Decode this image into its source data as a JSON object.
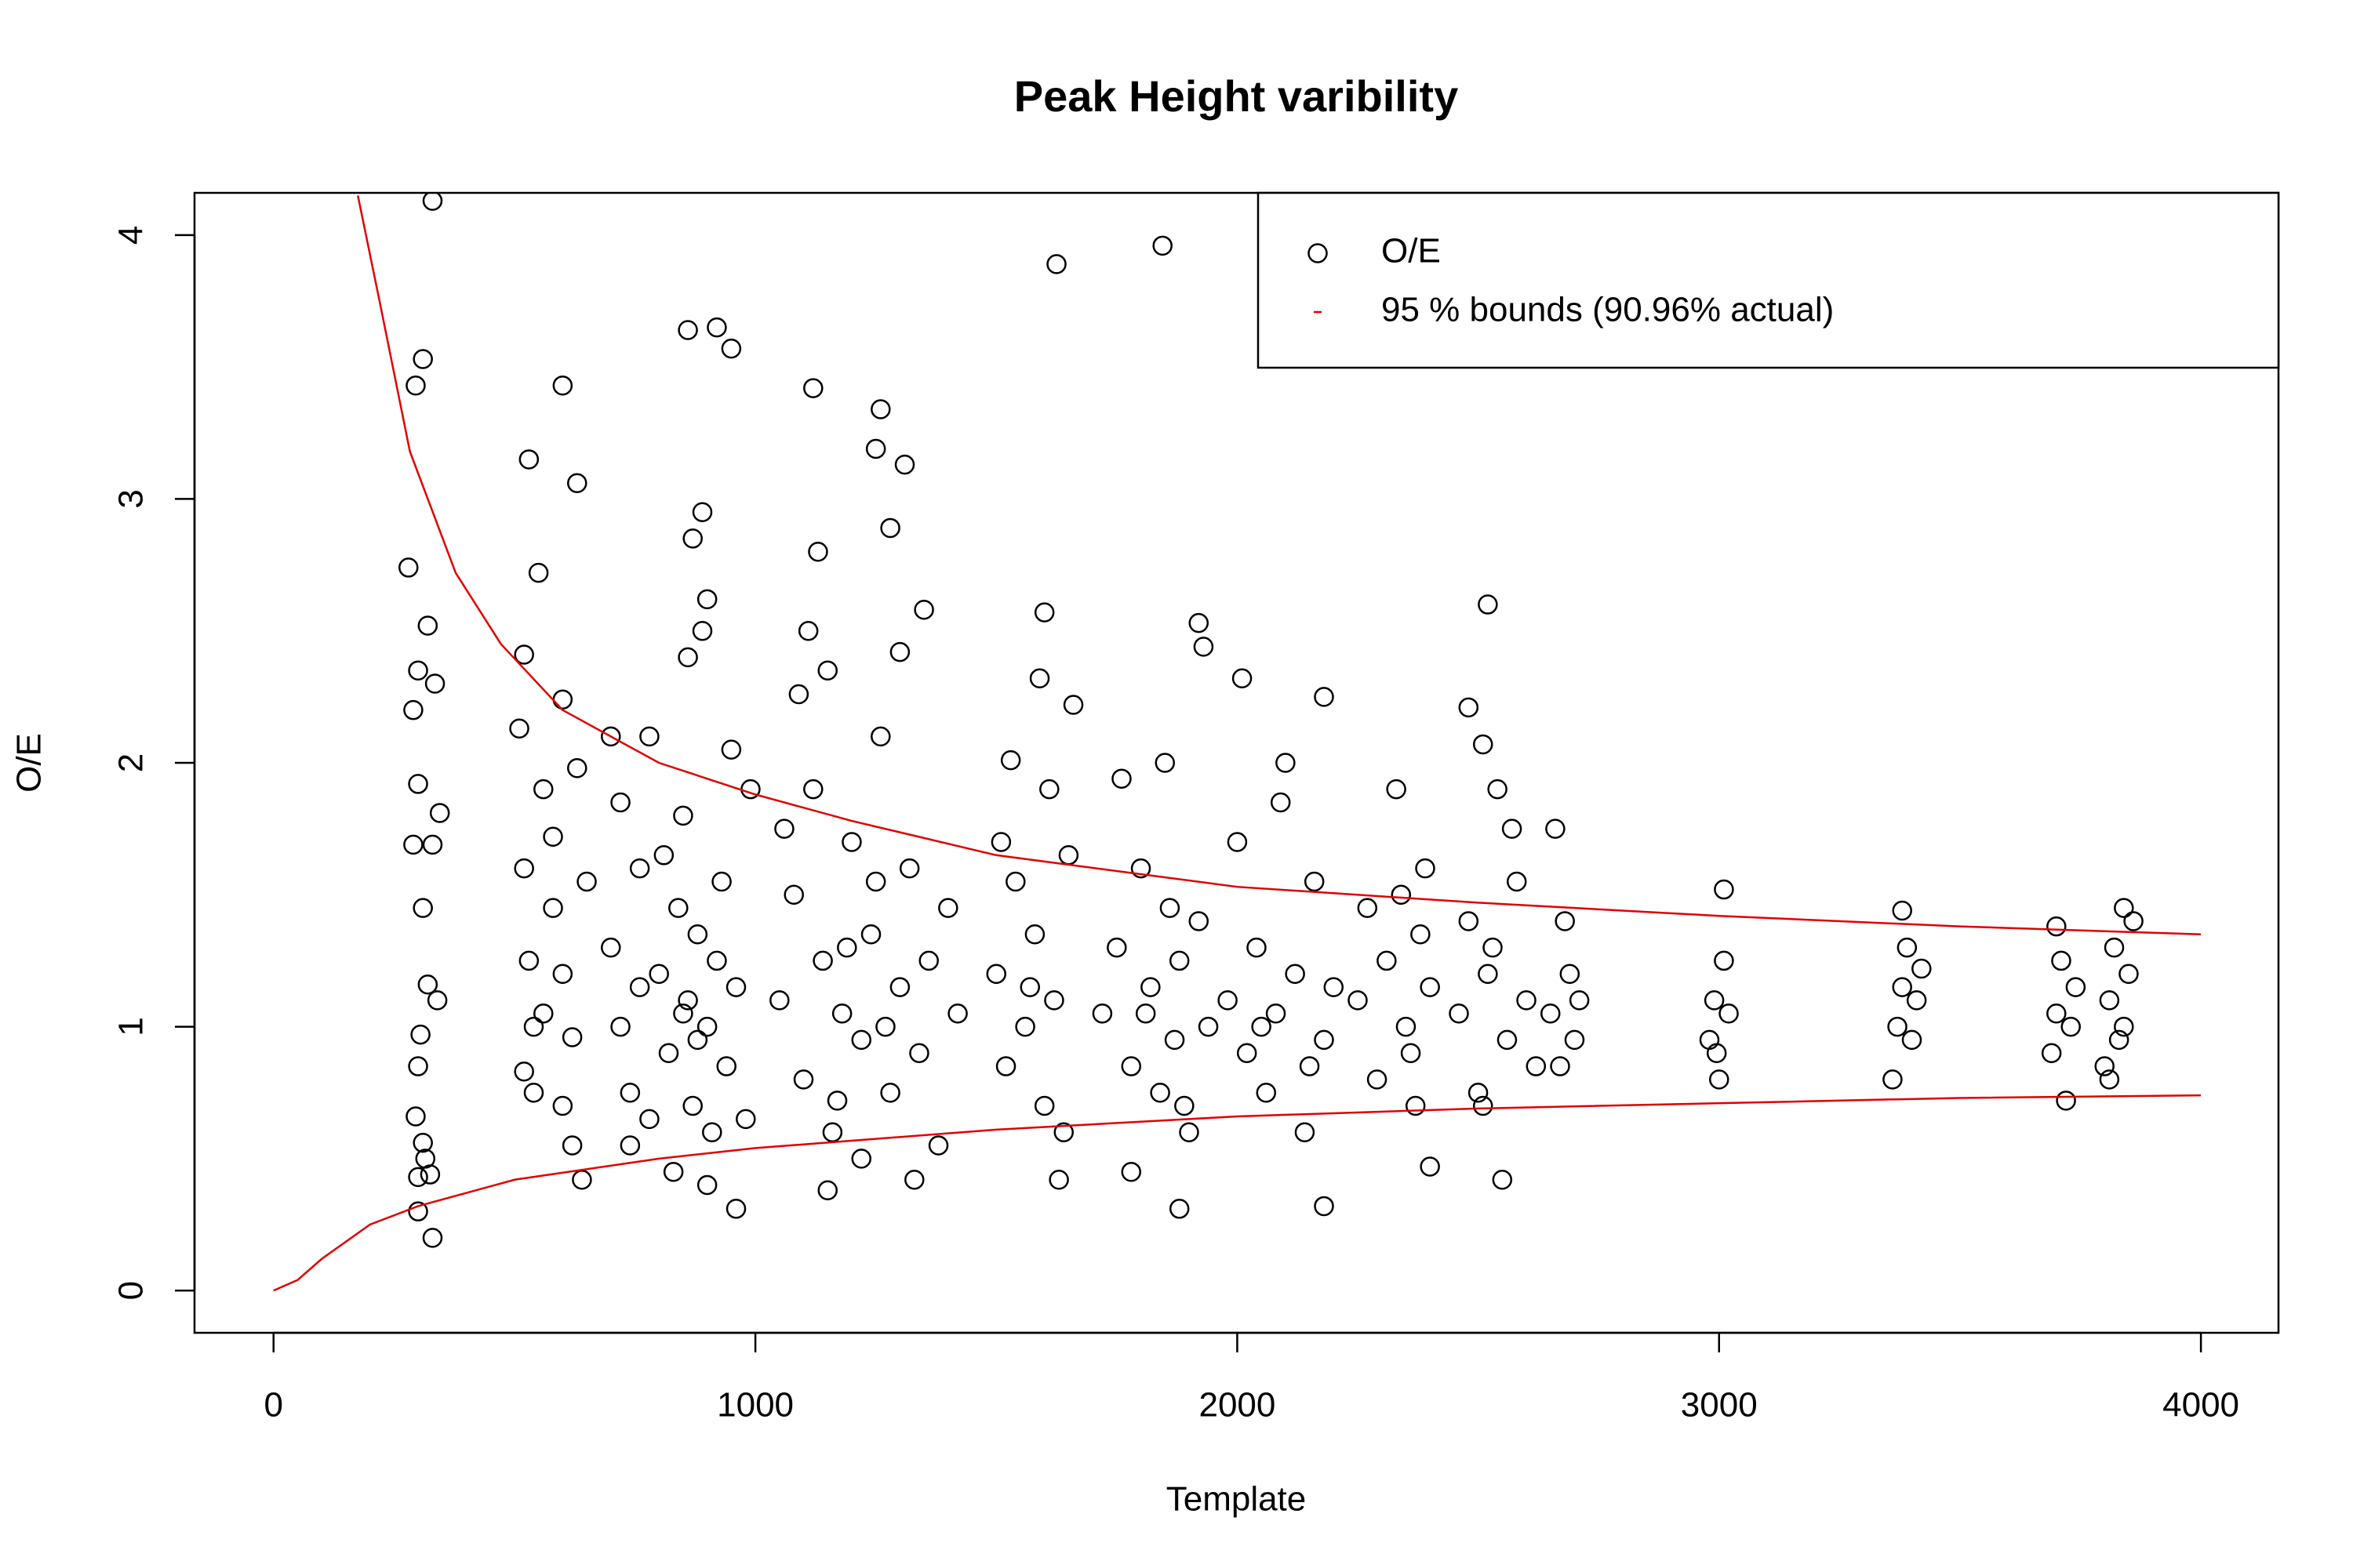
{
  "chart_data": {
    "type": "scatter",
    "title": "Peak Height varibility",
    "x_label": "Template",
    "y_label": "O/E",
    "xlim": [
      -164,
      4161
    ],
    "ylim": [
      -0.16,
      4.16
    ],
    "xticks": [
      0,
      1000,
      2000,
      3000,
      4000
    ],
    "yticks": [
      0,
      1,
      2,
      3,
      4
    ],
    "grid": false,
    "legend": "topright",
    "series": [
      {
        "name": "O/E",
        "color": "#000000",
        "x": [
          330,
          1625,
          1845,
          310,
          295,
          600,
          860,
          920,
          950,
          1120,
          1260,
          1250,
          1310,
          1280,
          530,
          630,
          280,
          550,
          2520,
          1600,
          1920,
          2180,
          2480,
          2510,
          1090,
          3010,
          3380,
          3840,
          3700,
          1880,
          2180,
          960,
          330,
          1780,
          2400,
          2550,
          640,
          1150,
          300,
          290,
          300,
          310,
          320,
          305,
          300,
          295,
          315,
          325,
          340,
          345,
          330,
          300,
          310,
          320,
          335,
          290,
          300,
          510,
          520,
          530,
          540,
          520,
          560,
          580,
          600,
          620,
          600,
          630,
          650,
          560,
          540,
          520,
          600,
          620,
          580,
          700,
          720,
          740,
          760,
          780,
          800,
          820,
          840,
          850,
          860,
          870,
          880,
          890,
          900,
          910,
          920,
          930,
          940,
          950,
          960,
          870,
          890,
          900,
          830,
          900,
          720,
          740,
          780,
          850,
          880,
          810,
          760,
          990,
          980,
          700,
          860,
          1050,
          1080,
          1100,
          1120,
          1140,
          1160,
          1180,
          1200,
          1220,
          1240,
          1260,
          1280,
          1300,
          1320,
          1340,
          1360,
          1380,
          1400,
          1150,
          1130,
          1220,
          1300,
          1350,
          1270,
          1190,
          1420,
          1060,
          1330,
          1250,
          1170,
          1110,
          1500,
          1520,
          1540,
          1560,
          1580,
          1600,
          1610,
          1620,
          1640,
          1650,
          1590,
          1660,
          1530,
          1570,
          1630,
          1510,
          1720,
          1750,
          1780,
          1800,
          1820,
          1840,
          1850,
          1860,
          1870,
          1880,
          1900,
          1920,
          1940,
          1930,
          1760,
          1890,
          1810,
          1980,
          2000,
          2020,
          2040,
          2060,
          2080,
          2100,
          2120,
          2140,
          2160,
          2180,
          2200,
          2010,
          2090,
          2050,
          2150,
          2250,
          2270,
          2290,
          2310,
          2330,
          2350,
          2370,
          2380,
          2390,
          2360,
          2400,
          2340,
          2460,
          2480,
          2500,
          2520,
          2540,
          2560,
          2580,
          2600,
          2620,
          2570,
          2510,
          2530,
          2650,
          2670,
          2680,
          2690,
          2700,
          2660,
          2710,
          2980,
          2990,
          3000,
          3010,
          3020,
          2995,
          3360,
          3370,
          3380,
          3390,
          3400,
          3410,
          3420,
          3690,
          3700,
          3710,
          3720,
          3730,
          3740,
          3800,
          3810,
          3820,
          3830,
          3840,
          3850,
          3860,
          3810
        ],
        "values": [
          4.13,
          3.89,
          3.96,
          3.53,
          3.43,
          3.43,
          3.64,
          3.65,
          3.57,
          3.42,
          3.34,
          3.19,
          3.13,
          2.89,
          3.15,
          3.06,
          2.74,
          2.72,
          2.6,
          2.57,
          2.53,
          2.25,
          2.21,
          2.07,
          2.26,
          1.52,
          1.44,
          1.45,
          1.38,
          0.31,
          0.32,
          0.31,
          0.2,
          0.45,
          0.47,
          0.42,
          0.42,
          0.38,
          0.3,
          2.2,
          1.92,
          1.45,
          1.16,
          0.97,
          0.85,
          0.66,
          0.5,
          0.44,
          1.1,
          1.81,
          1.69,
          0.43,
          0.56,
          2.52,
          2.3,
          1.69,
          2.35,
          2.13,
          1.6,
          1.25,
          1.0,
          0.83,
          1.9,
          1.45,
          1.2,
          0.96,
          0.7,
          1.98,
          1.55,
          1.05,
          0.75,
          2.41,
          2.24,
          0.55,
          1.72,
          1.3,
          1.0,
          0.75,
          1.6,
          2.1,
          1.2,
          0.9,
          1.45,
          1.8,
          1.1,
          0.7,
          1.35,
          2.5,
          1.0,
          0.6,
          1.25,
          1.55,
          0.85,
          2.05,
          1.15,
          2.85,
          2.95,
          2.62,
          0.45,
          0.4,
          1.85,
          0.55,
          0.65,
          1.05,
          0.95,
          1.65,
          1.15,
          1.9,
          0.65,
          2.1,
          2.4,
          1.1,
          1.5,
          0.8,
          1.9,
          1.25,
          0.6,
          1.05,
          1.7,
          0.95,
          1.35,
          2.1,
          0.75,
          1.15,
          1.6,
          0.9,
          1.25,
          0.55,
          1.45,
          2.35,
          2.8,
          0.5,
          2.42,
          2.58,
          1.0,
          1.3,
          1.05,
          1.75,
          0.42,
          1.55,
          0.72,
          2.5,
          1.2,
          0.85,
          1.55,
          1.0,
          1.35,
          0.7,
          1.9,
          1.1,
          0.6,
          1.65,
          2.32,
          2.22,
          2.01,
          1.15,
          0.42,
          1.7,
          1.05,
          1.3,
          0.85,
          1.6,
          1.15,
          0.75,
          2.0,
          1.45,
          0.95,
          1.25,
          0.6,
          1.4,
          1.0,
          2.44,
          1.94,
          0.7,
          1.05,
          1.1,
          1.7,
          0.9,
          1.3,
          0.75,
          1.05,
          2.0,
          1.2,
          0.6,
          1.55,
          0.95,
          1.15,
          2.32,
          1.85,
          1.0,
          0.85,
          1.1,
          1.45,
          0.8,
          1.25,
          1.9,
          1.0,
          0.7,
          1.35,
          1.6,
          0.9,
          1.15,
          1.5,
          1.05,
          1.4,
          0.75,
          1.2,
          1.9,
          0.95,
          1.55,
          1.1,
          0.85,
          1.75,
          0.7,
          1.3,
          1.05,
          0.85,
          1.4,
          1.2,
          0.95,
          1.75,
          1.1,
          0.95,
          1.1,
          0.8,
          1.25,
          1.05,
          0.9,
          0.8,
          1.0,
          1.15,
          1.3,
          0.95,
          1.1,
          1.22,
          0.9,
          1.05,
          1.25,
          0.72,
          1.0,
          1.15,
          0.85,
          1.1,
          1.3,
          0.95,
          1.0,
          1.2,
          1.4,
          0.8
        ]
      },
      {
        "name": "95 % bounds (90.96% actual)",
        "color": "#e00000",
        "lines": [
          {
            "x": [
              175,
              220,
              283,
              378,
              472,
              600,
              800,
              1000,
              1200,
              1500,
              2000,
              2500,
              3000,
              3500,
              4000
            ],
            "values": [
              4.15,
              3.75,
              3.18,
              2.72,
              2.45,
              2.2,
              2.0,
              1.88,
              1.78,
              1.65,
              1.53,
              1.47,
              1.42,
              1.38,
              1.35
            ]
          },
          {
            "x": [
              0,
              50,
              100,
              200,
              300,
              500,
              800,
              1000,
              1500,
              2000,
              2500,
              3000,
              3500,
              4000
            ],
            "values": [
              0,
              0.04,
              0.12,
              0.25,
              0.32,
              0.42,
              0.5,
              0.54,
              0.61,
              0.66,
              0.69,
              0.71,
              0.73,
              0.74
            ]
          }
        ]
      }
    ]
  }
}
